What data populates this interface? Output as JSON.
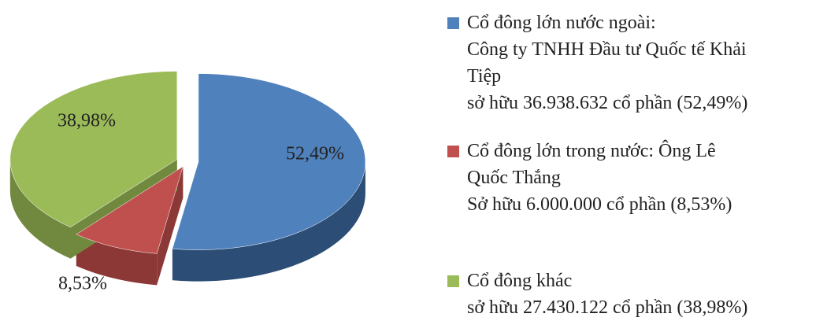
{
  "chart_data": {
    "type": "pie",
    "categories": [
      "Cổ đông lớn nước ngoài:\nCông ty TNHH Đầu tư Quốc tế Khải\nTiệp\nsở hữu 36.938.632 cổ phần (52,49%)",
      "Cổ đông lớn trong nước: Ông Lê\nQuốc Thắng\nSở hữu 6.000.000 cổ phần (8,53%)",
      "Cổ đông khác\nsở hữu 27.430.122 cổ phần (38,98%)"
    ],
    "values": [
      52.49,
      8.53,
      38.98
    ],
    "value_labels": [
      "52,49%",
      "8,53%",
      "38,98%"
    ],
    "colors": [
      "#4f81bd",
      "#c0504d",
      "#9bbb59"
    ],
    "side_colors": [
      "#2c4d75",
      "#8c3836",
      "#71893f"
    ],
    "legend": "right"
  }
}
